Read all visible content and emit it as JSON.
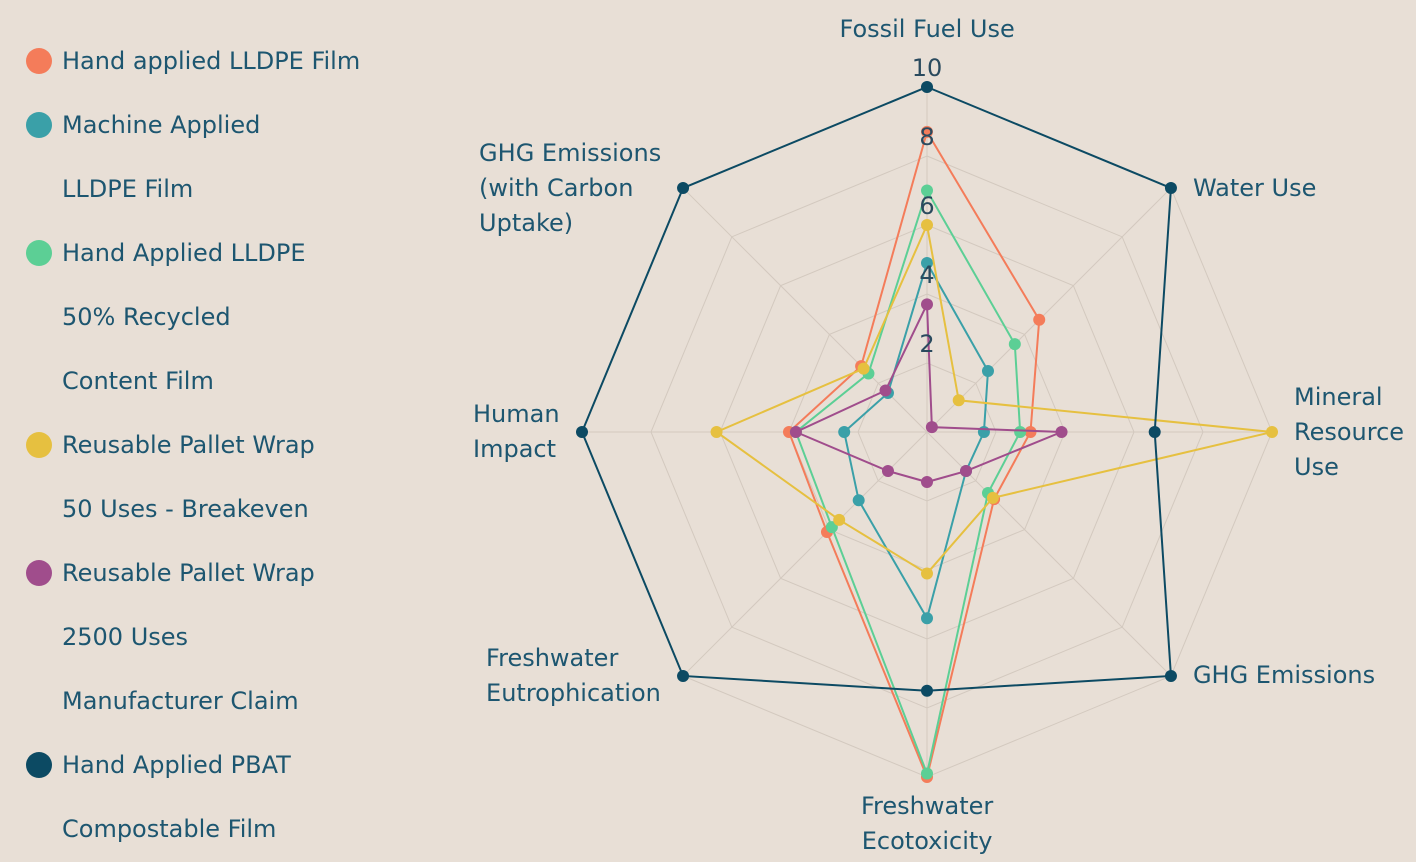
{
  "chart_data": {
    "type": "radar",
    "categories": [
      "Fossil Fuel Use",
      "Water Use",
      "Mineral\nResource\nUse",
      "GHG Emissions",
      "Freshwater\nEcotoxicity",
      "Freshwater\nEutrophication",
      "Human\nImpact",
      "GHG Emissions\n(with Carbon\nUptake)"
    ],
    "series": [
      {
        "name": "Hand applied LLDPE Film",
        "color": "#f47c5a",
        "values": [
          8.7,
          4.6,
          3.0,
          2.75,
          10,
          4.1,
          4.0,
          2.7
        ]
      },
      {
        "name": "Machine Applied\nLLDPE Film",
        "color": "#3aa0a8",
        "values": [
          4.9,
          2.5,
          1.65,
          1.6,
          5.4,
          2.8,
          2.4,
          1.6
        ]
      },
      {
        "name": "Hand Applied LLDPE\n50% Recycled\nContent Film",
        "color": "#5ccf95",
        "values": [
          7.0,
          3.6,
          2.7,
          2.5,
          9.9,
          3.9,
          3.8,
          2.4
        ]
      },
      {
        "name": "Reusable Pallet Wrap\n50 Uses - Breakeven",
        "color": "#e6c040",
        "values": [
          6.0,
          1.3,
          10,
          2.7,
          4.1,
          3.6,
          6.1,
          2.6
        ]
      },
      {
        "name": "Reusable Pallet Wrap\n2500 Uses\nManufacturer Claim",
        "color": "#a04d8c",
        "values": [
          3.7,
          0.2,
          3.9,
          1.6,
          1.45,
          1.6,
          3.8,
          1.7
        ]
      },
      {
        "name": "Hand Applied PBAT\nCompostable Film",
        "color": "#0c4a63",
        "values": [
          10,
          10,
          6.6,
          10,
          7.5,
          10,
          10,
          10
        ]
      }
    ],
    "ylim": [
      0,
      10
    ],
    "yticks": [
      2,
      4,
      6,
      8,
      10
    ],
    "grid": true
  }
}
